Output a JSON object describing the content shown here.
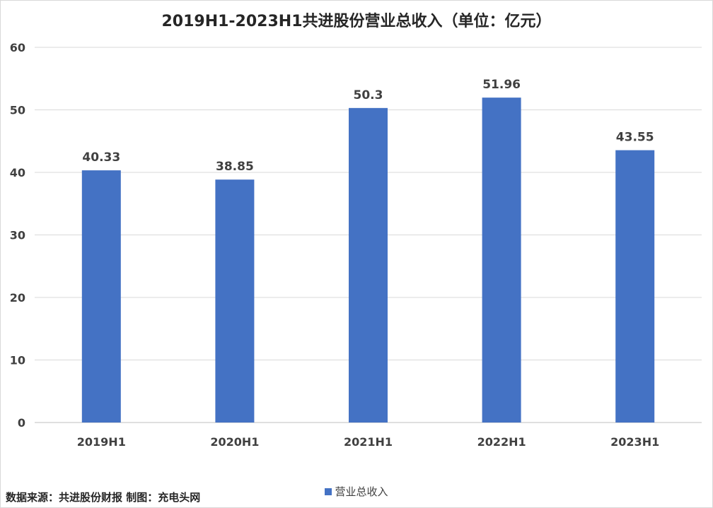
{
  "chart_data": {
    "type": "bar",
    "title": "2019H1-2023H1共进股份营业总收入（单位：亿元）",
    "categories": [
      "2019H1",
      "2020H1",
      "2021H1",
      "2022H1",
      "2023H1"
    ],
    "series": [
      {
        "name": "营业总收入",
        "values": [
          40.33,
          38.85,
          50.3,
          51.96,
          43.55
        ],
        "color": "#4472c4"
      }
    ],
    "yticks": [
      0,
      10,
      20,
      30,
      40,
      50,
      60
    ],
    "ylim": [
      0,
      60
    ],
    "grid": true,
    "legend_position": "bottom"
  },
  "source_note": "数据来源：共进股份财报 制图：充电头网"
}
